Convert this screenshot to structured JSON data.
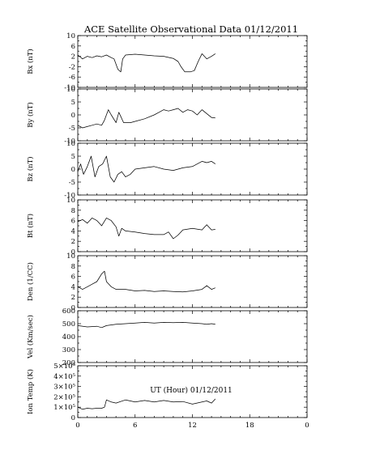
{
  "chart_data": {
    "type": "line",
    "title": "ACE Satellite Observational Data   01/12/2011",
    "xlabel": "UT (Hour)   01/12/2011",
    "xlim": [
      0,
      24
    ],
    "x_ticks": [
      "0",
      "6",
      "12",
      "18",
      "0"
    ],
    "panels": [
      {
        "ylabel": "Bx (nT)",
        "ylim": [
          -10,
          10
        ],
        "y_ticks": [
          "10",
          "6",
          "2",
          "-2",
          "-6",
          "-10"
        ],
        "y_tick_values": [
          10,
          6,
          2,
          -2,
          -6,
          -10
        ],
        "points": [
          [
            0,
            2.5
          ],
          [
            0.5,
            1
          ],
          [
            1,
            2
          ],
          [
            1.5,
            1.5
          ],
          [
            2,
            2.2
          ],
          [
            2.5,
            1.8
          ],
          [
            3,
            2.5
          ],
          [
            3.5,
            1.5
          ],
          [
            3.8,
            1
          ],
          [
            4.2,
            -3
          ],
          [
            4.5,
            -4
          ],
          [
            4.7,
            1
          ],
          [
            5,
            2.5
          ],
          [
            6,
            2.8
          ],
          [
            7,
            2.5
          ],
          [
            8,
            2.2
          ],
          [
            9,
            2
          ],
          [
            10,
            1.2
          ],
          [
            10.5,
            0
          ],
          [
            10.8,
            -2
          ],
          [
            11.2,
            -4
          ],
          [
            11.8,
            -4
          ],
          [
            12.2,
            -3.5
          ],
          [
            12.6,
            0
          ],
          [
            13,
            3
          ],
          [
            13.5,
            1
          ],
          [
            14,
            2
          ],
          [
            14.4,
            3
          ]
        ]
      },
      {
        "ylabel": "By (nT)",
        "ylim": [
          -10,
          10
        ],
        "y_ticks": [
          "10",
          "5",
          "0",
          "-5",
          "-10"
        ],
        "y_tick_values": [
          10,
          5,
          0,
          -5,
          -10
        ],
        "points": [
          [
            0,
            -4
          ],
          [
            0.5,
            -5
          ],
          [
            1,
            -4.5
          ],
          [
            1.5,
            -4
          ],
          [
            2,
            -3.5
          ],
          [
            2.5,
            -4
          ],
          [
            2.8,
            -2
          ],
          [
            3.2,
            2
          ],
          [
            3.5,
            0
          ],
          [
            4,
            -3
          ],
          [
            4.3,
            1
          ],
          [
            4.8,
            -3
          ],
          [
            5.5,
            -3
          ],
          [
            6,
            -2.5
          ],
          [
            7,
            -1.5
          ],
          [
            8,
            0
          ],
          [
            8.5,
            1
          ],
          [
            9,
            2
          ],
          [
            9.5,
            1.5
          ],
          [
            10,
            2
          ],
          [
            10.5,
            2.5
          ],
          [
            11,
            1
          ],
          [
            11.5,
            2
          ],
          [
            12,
            1.5
          ],
          [
            12.5,
            0
          ],
          [
            13,
            2
          ],
          [
            13.5,
            0.5
          ],
          [
            14,
            -1
          ],
          [
            14.4,
            -1.2
          ]
        ]
      },
      {
        "ylabel": "Bz (nT)",
        "ylim": [
          -10,
          10
        ],
        "y_ticks": [
          "10",
          "5",
          "0",
          "-5",
          "-10"
        ],
        "y_tick_values": [
          10,
          5,
          0,
          -5,
          -10
        ],
        "points": [
          [
            0,
            -1
          ],
          [
            0.3,
            2
          ],
          [
            0.6,
            -2
          ],
          [
            1,
            1
          ],
          [
            1.4,
            5
          ],
          [
            1.8,
            -3
          ],
          [
            2.2,
            1
          ],
          [
            2.6,
            2
          ],
          [
            3,
            5
          ],
          [
            3.4,
            -3
          ],
          [
            3.8,
            -5
          ],
          [
            4.2,
            -2
          ],
          [
            4.6,
            -1
          ],
          [
            5,
            -3
          ],
          [
            5.5,
            -2
          ],
          [
            6,
            0
          ],
          [
            7,
            0.5
          ],
          [
            8,
            1
          ],
          [
            9,
            0
          ],
          [
            10,
            -0.5
          ],
          [
            11,
            0.5
          ],
          [
            12,
            1
          ],
          [
            13,
            3
          ],
          [
            13.5,
            2.5
          ],
          [
            14,
            3
          ],
          [
            14.4,
            2
          ]
        ]
      },
      {
        "ylabel": "Bt (nT)",
        "ylim": [
          0,
          10
        ],
        "y_ticks": [
          "10",
          "8",
          "6",
          "4",
          "2",
          "0"
        ],
        "y_tick_values": [
          10,
          8,
          6,
          4,
          2,
          0
        ],
        "points": [
          [
            0,
            5.8
          ],
          [
            0.5,
            6.2
          ],
          [
            1,
            5.5
          ],
          [
            1.5,
            6.5
          ],
          [
            2,
            6
          ],
          [
            2.5,
            5
          ],
          [
            3,
            6.5
          ],
          [
            3.5,
            6
          ],
          [
            4,
            4.8
          ],
          [
            4.3,
            3
          ],
          [
            4.6,
            4.5
          ],
          [
            5,
            4
          ],
          [
            6,
            3.8
          ],
          [
            7,
            3.5
          ],
          [
            8,
            3.3
          ],
          [
            9,
            3.3
          ],
          [
            9.5,
            3.8
          ],
          [
            10,
            2.5
          ],
          [
            10.5,
            3.2
          ],
          [
            11,
            4.2
          ],
          [
            12,
            4.5
          ],
          [
            13,
            4.2
          ],
          [
            13.5,
            5.2
          ],
          [
            14,
            4.2
          ],
          [
            14.4,
            4.3
          ]
        ]
      },
      {
        "ylabel": "Den (1/CC)",
        "ylim": [
          0,
          10
        ],
        "y_ticks": [
          "10",
          "8",
          "6",
          "4",
          "2",
          "0"
        ],
        "y_tick_values": [
          10,
          8,
          6,
          4,
          2,
          0
        ],
        "points": [
          [
            0,
            4
          ],
          [
            0.5,
            3.5
          ],
          [
            1,
            4
          ],
          [
            1.5,
            4.5
          ],
          [
            2,
            5
          ],
          [
            2.5,
            6.5
          ],
          [
            2.8,
            7
          ],
          [
            3,
            5
          ],
          [
            3.5,
            4
          ],
          [
            4,
            3.5
          ],
          [
            5,
            3.5
          ],
          [
            6,
            3.2
          ],
          [
            7,
            3.3
          ],
          [
            8,
            3.1
          ],
          [
            9,
            3.2
          ],
          [
            10,
            3.1
          ],
          [
            11,
            3
          ],
          [
            12,
            3.2
          ],
          [
            13,
            3.5
          ],
          [
            13.5,
            4.2
          ],
          [
            14,
            3.5
          ],
          [
            14.4,
            3.8
          ]
        ]
      },
      {
        "ylabel": "Vel (Km/sec)",
        "ylim": [
          200,
          600
        ],
        "y_ticks": [
          "600",
          "500",
          "400",
          "300",
          "200"
        ],
        "y_tick_values": [
          600,
          500,
          400,
          300,
          200
        ],
        "points": [
          [
            0,
            485
          ],
          [
            1,
            475
          ],
          [
            2,
            480
          ],
          [
            2.5,
            470
          ],
          [
            3,
            485
          ],
          [
            4,
            495
          ],
          [
            5,
            500
          ],
          [
            6,
            505
          ],
          [
            7,
            510
          ],
          [
            8,
            505
          ],
          [
            9,
            510
          ],
          [
            10,
            508
          ],
          [
            11,
            510
          ],
          [
            12,
            505
          ],
          [
            13,
            500
          ],
          [
            13.5,
            495
          ],
          [
            14,
            500
          ],
          [
            14.4,
            495
          ]
        ]
      },
      {
        "ylabel": "Ion Temp (K)",
        "ylim": [
          0,
          500000
        ],
        "y_ticks": [
          "5×10⁵",
          "4×10⁵",
          "3×10⁵",
          "2×10⁵",
          "1×10⁵",
          "0"
        ],
        "y_tick_values": [
          500000,
          400000,
          300000,
          200000,
          100000,
          0
        ],
        "points": [
          [
            0,
            100000
          ],
          [
            0.5,
            80000
          ],
          [
            1,
            90000
          ],
          [
            1.5,
            85000
          ],
          [
            2,
            90000
          ],
          [
            2.5,
            90000
          ],
          [
            2.8,
            100000
          ],
          [
            3,
            170000
          ],
          [
            3.5,
            150000
          ],
          [
            4,
            140000
          ],
          [
            5,
            170000
          ],
          [
            6,
            150000
          ],
          [
            7,
            165000
          ],
          [
            8,
            150000
          ],
          [
            9,
            165000
          ],
          [
            10,
            150000
          ],
          [
            11,
            155000
          ],
          [
            12,
            130000
          ],
          [
            13,
            150000
          ],
          [
            13.5,
            160000
          ],
          [
            14,
            140000
          ],
          [
            14.4,
            180000
          ]
        ]
      }
    ]
  }
}
